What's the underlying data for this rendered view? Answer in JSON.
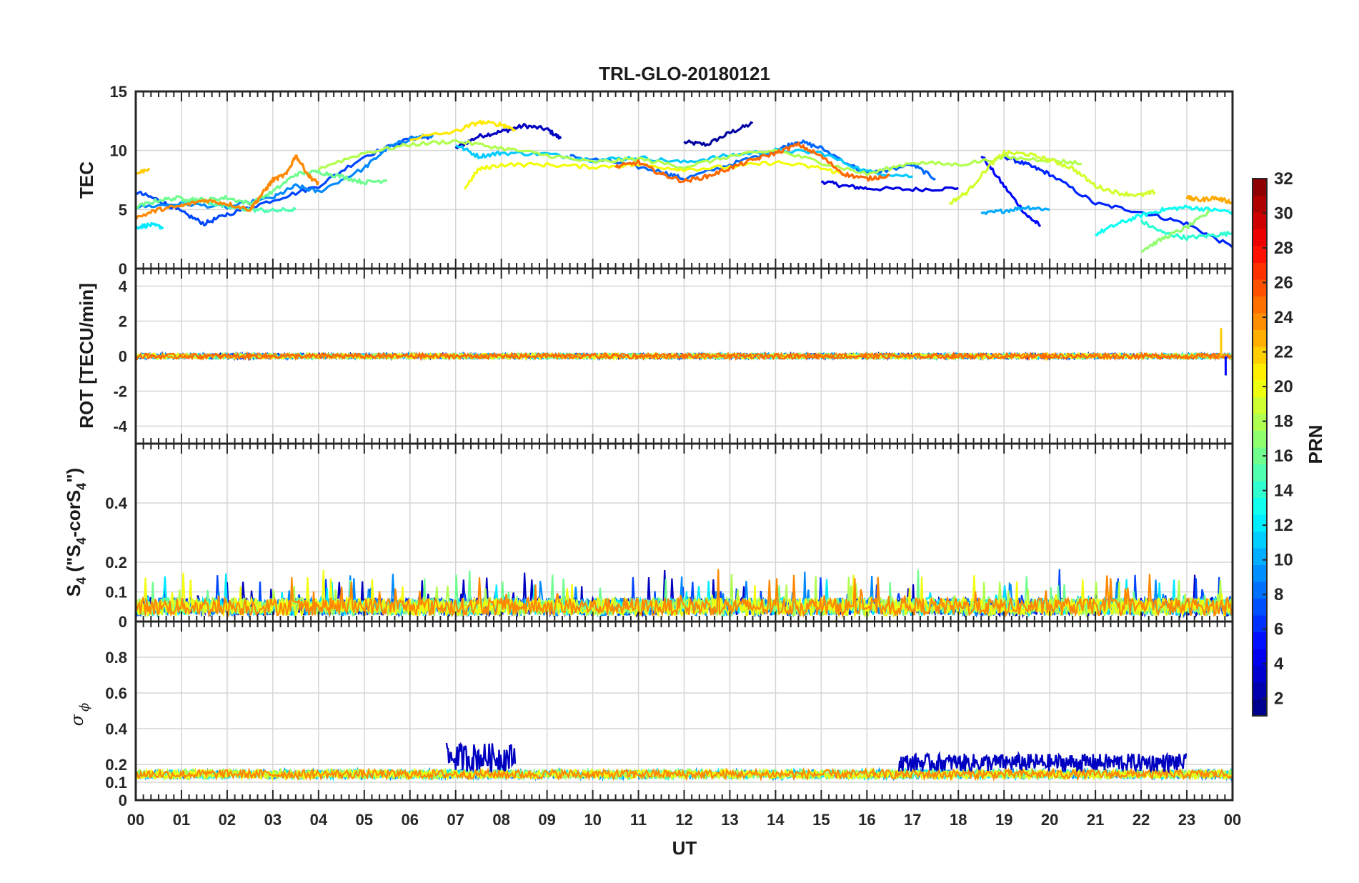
{
  "chart_data": [
    {
      "type": "line",
      "panel": "TEC",
      "title": "TRL-GLO-20180121",
      "ylabel": "TEC",
      "ylim": [
        0,
        15
      ],
      "yticks": [
        0,
        5,
        10,
        15
      ],
      "xlabel": "UT",
      "xlim": [
        0,
        24
      ],
      "series": [
        {
          "name": "PRN 2",
          "prn": 2,
          "x": [
            12.0,
            12.5,
            13.0,
            13.5
          ],
          "y": [
            10.7,
            10.5,
            11.5,
            12.3
          ]
        },
        {
          "name": "PRN 3",
          "prn": 3,
          "x": [
            7.0,
            7.5,
            8.0,
            8.5,
            9.0,
            9.3
          ],
          "y": [
            10.2,
            11.2,
            11.6,
            12.1,
            11.8,
            11.0
          ]
        },
        {
          "name": "PRN 4",
          "prn": 4,
          "x": [
            15.0,
            15.5,
            16.0,
            17.0,
            18.0
          ],
          "y": [
            7.4,
            7.0,
            6.8,
            6.7,
            6.8
          ]
        },
        {
          "name": "PRN 5",
          "prn": 5,
          "x": [
            18.5,
            19.0,
            19.5,
            19.8
          ],
          "y": [
            9.6,
            7.0,
            4.5,
            3.6
          ]
        },
        {
          "name": "PRN 6",
          "prn": 6,
          "x": [
            19.0,
            19.5,
            20.0,
            21.0,
            22.0,
            23.0,
            24.0
          ],
          "y": [
            9.5,
            8.8,
            8.0,
            5.5,
            4.8,
            3.8,
            1.8
          ]
        },
        {
          "name": "PRN 7",
          "prn": 7,
          "x": [
            0.0,
            0.5,
            1.0,
            1.5,
            2.0,
            3.0,
            4.0,
            5.0,
            6.0,
            6.5
          ],
          "y": [
            6.5,
            5.8,
            4.8,
            3.8,
            4.6,
            5.8,
            7.0,
            9.5,
            11.0,
            11.2
          ]
        },
        {
          "name": "PRN 8",
          "prn": 8,
          "x": [
            9.5,
            10.5,
            11.5,
            12.0,
            13.0,
            14.0,
            14.5,
            15.0,
            16.0,
            17.0,
            17.5
          ],
          "y": [
            9.5,
            9.0,
            8.2,
            7.6,
            8.8,
            10.0,
            10.8,
            10.2,
            8.0,
            8.8,
            7.6
          ]
        },
        {
          "name": "PRN 9",
          "prn": 9,
          "x": [
            0.0,
            1.0,
            2.0,
            3.0,
            3.5,
            4.0,
            5.0,
            5.5,
            6.0,
            6.5
          ],
          "y": [
            5.2,
            5.5,
            5.2,
            6.0,
            7.0,
            6.5,
            8.5,
            10.2,
            11.0,
            11.3
          ]
        },
        {
          "name": "PRN 10",
          "prn": 10,
          "x": [
            18.5,
            19.0,
            19.5,
            20.0
          ],
          "y": [
            4.6,
            4.9,
            5.2,
            5.0
          ]
        },
        {
          "name": "PRN 11",
          "prn": 11,
          "x": [
            7.0,
            7.5,
            8.0,
            9.0,
            10.0,
            11.0,
            12.0,
            13.0,
            14.0,
            15.0,
            16.0,
            17.0
          ],
          "y": [
            10.5,
            9.5,
            9.8,
            9.7,
            9.2,
            9.4,
            9.0,
            9.6,
            10.0,
            9.8,
            8.2,
            7.8
          ]
        },
        {
          "name": "PRN 12",
          "prn": 12,
          "x": [
            0.0,
            0.3,
            0.6
          ],
          "y": [
            3.5,
            3.7,
            3.5
          ]
        },
        {
          "name": "PRN 13",
          "prn": 13,
          "x": [
            21.0,
            21.5,
            22.0,
            22.5,
            23.0,
            23.5,
            24.0
          ],
          "y": [
            2.9,
            3.8,
            4.5,
            5.0,
            5.2,
            5.0,
            4.8
          ]
        },
        {
          "name": "PRN 14",
          "prn": 14,
          "x": [
            22.0,
            22.5,
            23.0,
            23.5,
            24.0
          ],
          "y": [
            4.0,
            3.0,
            2.6,
            2.8,
            3.0
          ]
        },
        {
          "name": "PRN 15",
          "prn": 15,
          "x": [
            1.0,
            1.5,
            2.0,
            2.5,
            3.0,
            3.5
          ],
          "y": [
            5.8,
            5.7,
            5.2,
            5.0,
            4.9,
            5.0
          ]
        },
        {
          "name": "PRN 16",
          "prn": 16,
          "x": [
            0.0,
            0.5,
            1.0,
            1.5,
            2.0,
            2.5,
            3.0,
            3.5,
            4.0,
            4.5,
            5.0,
            5.5
          ],
          "y": [
            5.2,
            5.8,
            6.0,
            5.8,
            6.0,
            5.5,
            6.5,
            8.0,
            8.2,
            7.8,
            7.3,
            7.5
          ]
        },
        {
          "name": "PRN 17",
          "prn": 17,
          "x": [
            22.0,
            22.5,
            23.0,
            23.5
          ],
          "y": [
            1.5,
            2.6,
            3.5,
            4.8
          ]
        },
        {
          "name": "PRN 18",
          "prn": 18,
          "x": [
            4.0,
            5.0,
            6.0,
            7.0,
            8.0,
            9.0,
            10.0,
            11.0,
            12.0,
            13.0,
            14.0,
            15.0,
            16.0,
            17.0,
            18.0,
            19.0,
            20.0,
            20.7
          ],
          "y": [
            8.5,
            9.8,
            10.5,
            10.8,
            10.2,
            9.6,
            9.0,
            9.3,
            8.6,
            9.5,
            10.0,
            9.0,
            8.0,
            9.0,
            8.8,
            9.4,
            9.2,
            8.9
          ]
        },
        {
          "name": "PRN 19",
          "prn": 19,
          "x": [
            17.8,
            18.2,
            18.7,
            19.0,
            19.5,
            20.0,
            20.5,
            21.0,
            21.5,
            22.0,
            22.3
          ],
          "y": [
            5.5,
            6.5,
            8.8,
            9.8,
            9.7,
            9.2,
            8.5,
            7.0,
            6.4,
            6.2,
            6.5
          ]
        },
        {
          "name": "PRN 20",
          "prn": 20,
          "x": [
            7.2,
            7.5,
            8.0,
            9.0,
            10.0,
            11.0,
            12.0,
            13.0,
            14.0,
            15.0,
            15.5
          ],
          "y": [
            6.8,
            8.4,
            8.8,
            8.8,
            8.6,
            8.8,
            8.4,
            8.6,
            9.0,
            8.5,
            8.0
          ]
        },
        {
          "name": "PRN 21",
          "prn": 21,
          "x": [
            6.0,
            7.0,
            7.5,
            8.0,
            8.3
          ],
          "y": [
            11.0,
            11.6,
            12.4,
            12.2,
            11.8
          ]
        },
        {
          "name": "PRN 22",
          "prn": 22,
          "x": [
            0.0,
            0.3
          ],
          "y": [
            8.0,
            8.5
          ]
        },
        {
          "name": "PRN 23",
          "prn": 23,
          "x": [
            23.0,
            23.3,
            23.6,
            24.0
          ],
          "y": [
            6.0,
            5.8,
            6.0,
            5.6
          ]
        },
        {
          "name": "PRN 24",
          "prn": 24,
          "x": [
            0.0,
            0.5,
            1.0,
            1.5,
            2.0,
            2.5,
            2.8,
            3.0,
            3.3,
            3.5,
            3.8,
            4.0
          ],
          "y": [
            4.3,
            5.0,
            5.3,
            5.8,
            5.5,
            5.0,
            6.5,
            7.5,
            8.0,
            9.6,
            7.8,
            7.2
          ]
        },
        {
          "name": "PRN 25",
          "prn": 25,
          "x": [
            10.5,
            11.0,
            11.5,
            12.0,
            12.5,
            13.0,
            13.5,
            14.0,
            14.5,
            15.0,
            15.5,
            16.0,
            16.5
          ],
          "y": [
            8.6,
            9.0,
            8.0,
            7.4,
            7.8,
            8.5,
            9.2,
            9.8,
            10.5,
            9.5,
            8.0,
            7.6,
            7.9
          ]
        }
      ]
    },
    {
      "type": "line",
      "panel": "ROT",
      "ylabel": "ROT [TECU/min]",
      "ylim": [
        -5,
        5
      ],
      "yticks": [
        -4,
        -2,
        0,
        2,
        4
      ],
      "xlim": [
        0,
        24
      ],
      "description_values": {
        "baseline": 0.0,
        "typical_amplitude": 0.25,
        "max_spike": 1.6,
        "min_spike": -1.1
      }
    },
    {
      "type": "line",
      "panel": "S4",
      "ylabel": "S4 (\"S4-corS4\")",
      "ylim": [
        0,
        0.6
      ],
      "yticks": [
        0,
        0.1,
        0.2,
        0.4
      ],
      "xlim": [
        0,
        24
      ],
      "description_values": {
        "typical_range": [
          0.02,
          0.1
        ],
        "max_value": 0.2
      }
    },
    {
      "type": "line",
      "panel": "SigmaPhi",
      "ylabel": "σ ϕ",
      "ylim": [
        0,
        1.0
      ],
      "yticks": [
        0,
        0.1,
        0.2,
        0.4,
        0.6,
        0.8
      ],
      "xlim": [
        0,
        24
      ],
      "xlabel": "UT",
      "xticks": [
        "00",
        "01",
        "02",
        "03",
        "04",
        "05",
        "06",
        "07",
        "08",
        "09",
        "10",
        "11",
        "12",
        "13",
        "14",
        "15",
        "16",
        "17",
        "18",
        "19",
        "20",
        "21",
        "22",
        "23",
        "00"
      ],
      "description_values": {
        "baseline": [
          0.12,
          0.16
        ],
        "elevated_intervals": [
          [
            6.8,
            8.3,
            0.28
          ],
          [
            16.7,
            23.0,
            0.22
          ]
        ]
      }
    }
  ],
  "colorbar": {
    "label": "PRN",
    "min": 1,
    "max": 32,
    "ticks": [
      2,
      4,
      6,
      8,
      10,
      12,
      14,
      16,
      18,
      20,
      22,
      24,
      26,
      28,
      30,
      32
    ],
    "colormap": "jet"
  },
  "labels": {
    "title": "TRL-GLO-20180121",
    "tec_ylabel": "TEC",
    "rot_ylabel": "ROT [TECU/min]",
    "s4_ylabel": "S",
    "s4_ylabel_rest": " (\"S",
    "s4_ylabel_mid": "-corS",
    "s4_ylabel_end": "\")",
    "s4_sub": "4",
    "sigma_ylabel": "σ",
    "sigma_sub": "ϕ",
    "xlabel": "UT",
    "cblabel": "PRN"
  }
}
